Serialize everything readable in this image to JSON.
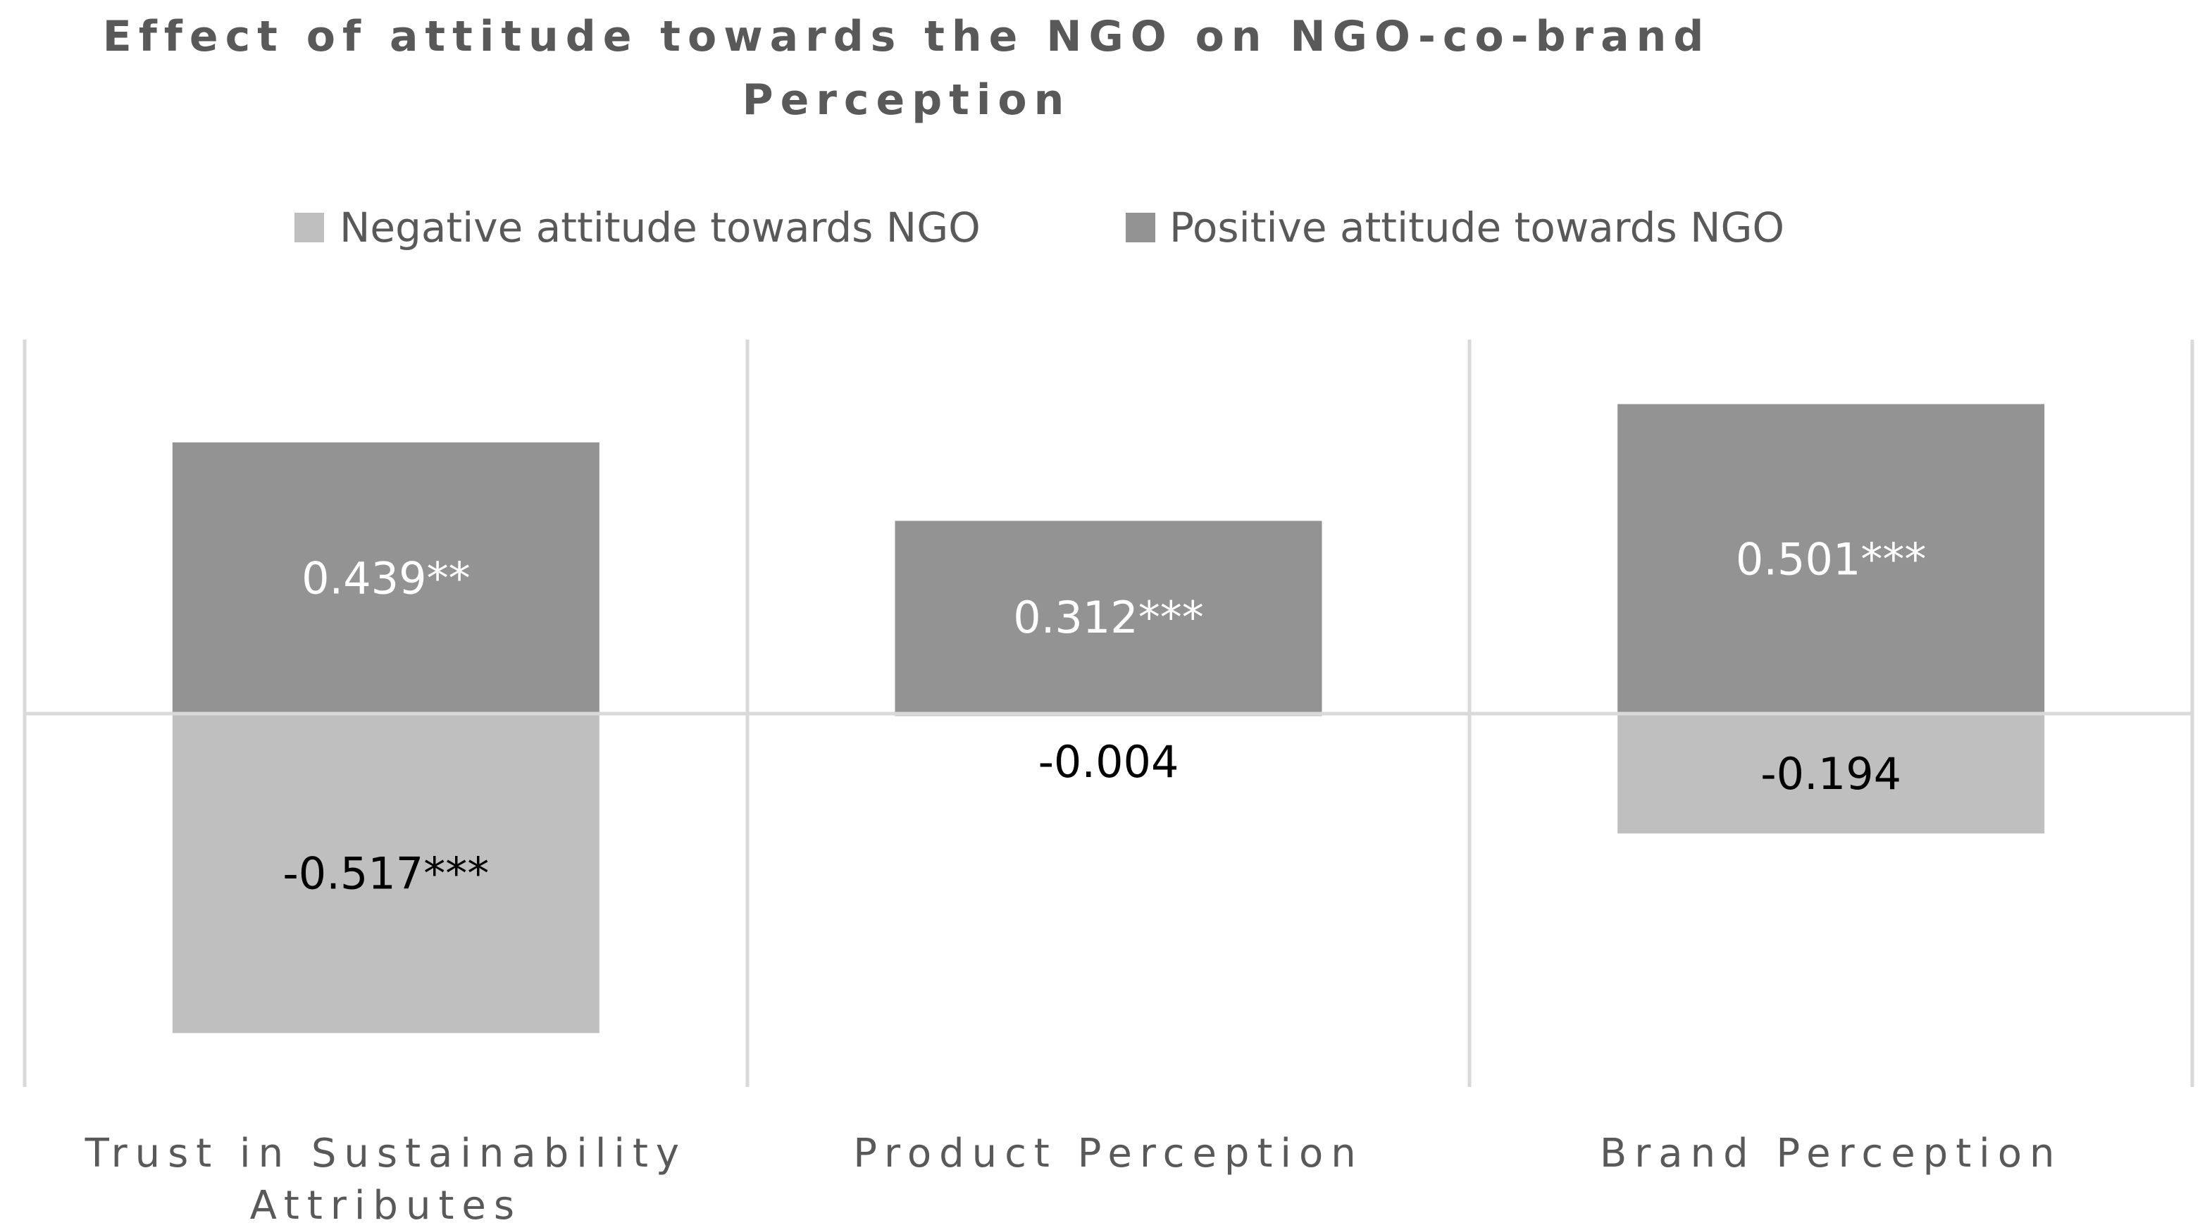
{
  "chart_data": {
    "type": "bar",
    "title_lines": [
      "Effect of attitude towards the NGO on NGO-co-brand",
      "Perception"
    ],
    "categories": [
      [
        "Trust in Sustainability",
        "Attributes"
      ],
      [
        "Product Perception"
      ],
      [
        "Brand Perception"
      ]
    ],
    "series": [
      {
        "name": "Negative attitude towards NGO",
        "color": "#bfbfbf",
        "label_color": "#000000",
        "values": [
          -0.517,
          -0.004,
          -0.194
        ],
        "labels": [
          "-0.517***",
          "-0.004",
          "-0.194"
        ]
      },
      {
        "name": "Positive attitude towards NGO",
        "color": "#939393",
        "label_color": "#ffffff",
        "values": [
          0.439,
          0.312,
          0.501
        ],
        "labels": [
          "0.439**",
          "0.312***",
          "0.501***"
        ]
      }
    ],
    "stacked": true,
    "ylim": [
      -0.6,
      0.6
    ],
    "legend_position": "top",
    "grid": false,
    "category_separators": true
  }
}
